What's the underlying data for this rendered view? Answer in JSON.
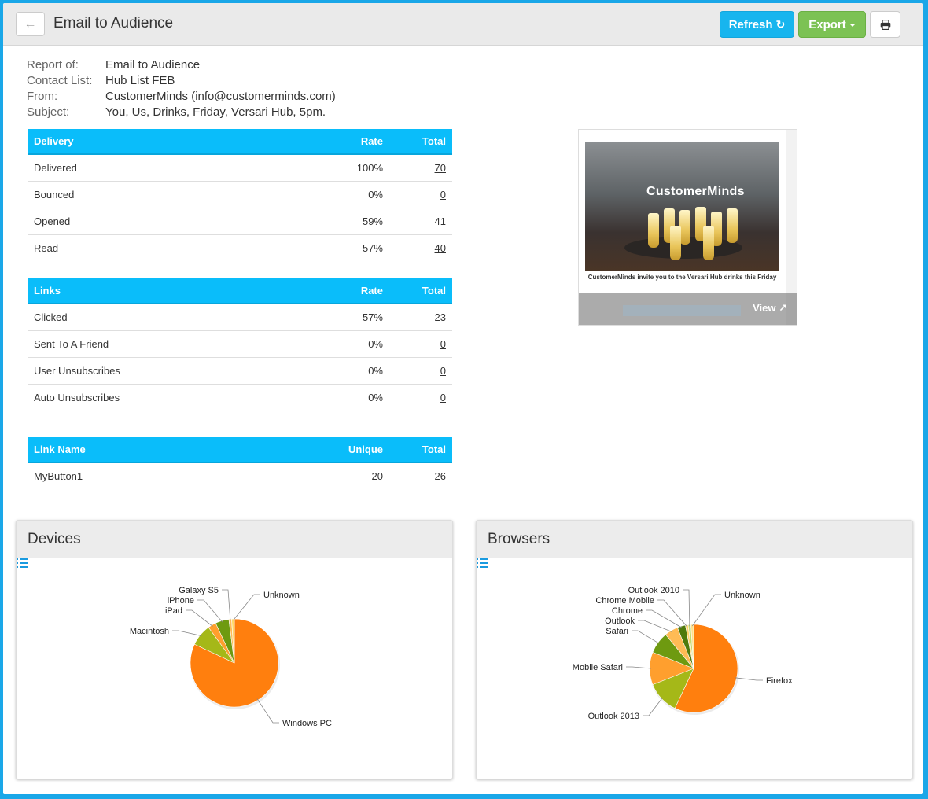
{
  "header": {
    "title": "Email to Audience",
    "refresh_label": "Refresh",
    "export_label": "Export"
  },
  "meta": [
    {
      "label": "Report of:",
      "value": "Email to Audience"
    },
    {
      "label": "Contact List:",
      "value": "Hub List FEB"
    },
    {
      "label": "From:",
      "value": "CustomerMinds (info@customerminds.com)"
    },
    {
      "label": "Subject:",
      "value": "You, Us, Drinks, Friday, Versari Hub, 5pm."
    }
  ],
  "delivery": {
    "headers": [
      "Delivery",
      "Rate",
      "Total"
    ],
    "rows": [
      {
        "name": "Delivered",
        "rate": "100%",
        "total": "70"
      },
      {
        "name": "Bounced",
        "rate": "0%",
        "total": "0"
      },
      {
        "name": "Opened",
        "rate": "59%",
        "total": "41"
      },
      {
        "name": "Read",
        "rate": "57%",
        "total": "40"
      }
    ]
  },
  "links": {
    "headers": [
      "Links",
      "Rate",
      "Total"
    ],
    "rows": [
      {
        "name": "Clicked",
        "rate": "57%",
        "total": "23"
      },
      {
        "name": "Sent To A Friend",
        "rate": "0%",
        "total": "0"
      },
      {
        "name": "User Unsubscribes",
        "rate": "0%",
        "total": "0"
      },
      {
        "name": "Auto Unsubscribes",
        "rate": "0%",
        "total": "0"
      }
    ]
  },
  "link_names": {
    "headers": [
      "Link Name",
      "Unique",
      "Total"
    ],
    "rows": [
      {
        "name": "MyButton1",
        "unique": "20",
        "total": "26"
      }
    ]
  },
  "preview": {
    "logo_text": "CustomerMinds",
    "caption": "CustomerMinds invite you to the Versari Hub drinks this Friday",
    "view_label": "View"
  },
  "chart_data": [
    {
      "type": "pie",
      "title": "Devices",
      "series": [
        {
          "label": "Windows PC",
          "value": 82,
          "color": "#ff7f0e"
        },
        {
          "label": "Macintosh",
          "value": 8,
          "color": "#a5b818"
        },
        {
          "label": "iPad",
          "value": 3,
          "color": "#ff9f2e"
        },
        {
          "label": "iPhone",
          "value": 5,
          "color": "#6e9a10"
        },
        {
          "label": "Galaxy S5",
          "value": 1,
          "color": "#ffbb55"
        },
        {
          "label": "Unknown",
          "value": 1,
          "color": "#ffd966"
        }
      ]
    },
    {
      "type": "pie",
      "title": "Browsers",
      "series": [
        {
          "label": "Firefox",
          "value": 57,
          "color": "#ff7f0e"
        },
        {
          "label": "Outlook 2013",
          "value": 12,
          "color": "#a5b818"
        },
        {
          "label": "Mobile Safari",
          "value": 12,
          "color": "#ff9f2e"
        },
        {
          "label": "Safari",
          "value": 8,
          "color": "#6e9a10"
        },
        {
          "label": "Outlook",
          "value": 5,
          "color": "#ffbb55"
        },
        {
          "label": "Chrome",
          "value": 3,
          "color": "#4f7a0b"
        },
        {
          "label": "Chrome Mobile",
          "value": 1,
          "color": "#ffd36b"
        },
        {
          "label": "Outlook 2010",
          "value": 1,
          "color": "#c6d96a"
        },
        {
          "label": "Unknown",
          "value": 1,
          "color": "#ffe08a"
        }
      ]
    }
  ]
}
